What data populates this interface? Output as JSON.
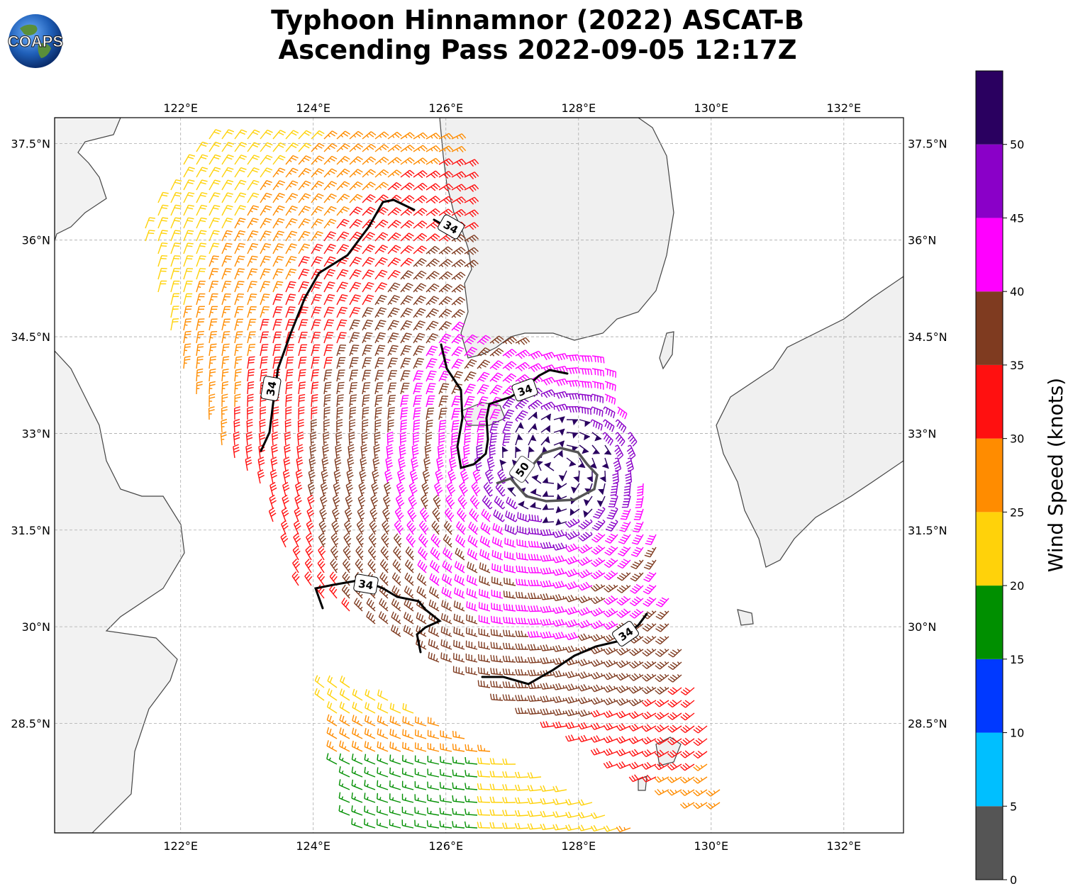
{
  "title": {
    "line1": "Typhoon Hinnamnor (2022) ASCAT-B",
    "line2": "Ascending Pass 2022-09-05 12:17Z"
  },
  "logo": {
    "text": "COAPS",
    "icon": "globe-icon"
  },
  "map": {
    "lon_range": [
      120.1,
      132.9
    ],
    "lat_range": [
      26.8,
      37.9
    ],
    "lon_ticks": [
      {
        "value": 122,
        "label": "122°E"
      },
      {
        "value": 124,
        "label": "124°E"
      },
      {
        "value": 126,
        "label": "126°E"
      },
      {
        "value": 128,
        "label": "128°E"
      },
      {
        "value": 130,
        "label": "130°E"
      },
      {
        "value": 132,
        "label": "132°E"
      }
    ],
    "lat_ticks": [
      {
        "value": 37.5,
        "label": "37.5°N"
      },
      {
        "value": 36,
        "label": "36°N"
      },
      {
        "value": 34.5,
        "label": "34.5°N"
      },
      {
        "value": 33,
        "label": "33°N"
      },
      {
        "value": 31.5,
        "label": "31.5°N"
      },
      {
        "value": 30,
        "label": "30°N"
      },
      {
        "value": 28.5,
        "label": "28.5°N"
      }
    ],
    "gridlines": true,
    "storm_center": {
      "lon": 127.7,
      "lat": 32.5
    }
  },
  "contours": [
    {
      "level": "34",
      "label": "34",
      "color": "#000000"
    },
    {
      "level": "50",
      "label": "50",
      "color": "#555555"
    }
  ],
  "colorbar": {
    "label": "Wind Speed (knots)",
    "bins": [
      {
        "from": 0,
        "to": 5,
        "color": "#555555"
      },
      {
        "from": 5,
        "to": 10,
        "color": "#00bfff"
      },
      {
        "from": 10,
        "to": 15,
        "color": "#0039ff"
      },
      {
        "from": 15,
        "to": 20,
        "color": "#008f00"
      },
      {
        "from": 20,
        "to": 25,
        "color": "#ffd20a"
      },
      {
        "from": 25,
        "to": 30,
        "color": "#ff8c00"
      },
      {
        "from": 30,
        "to": 35,
        "color": "#ff1010"
      },
      {
        "from": 35,
        "to": 40,
        "color": "#7f3b20"
      },
      {
        "from": 40,
        "to": 45,
        "color": "#ff00ff"
      },
      {
        "from": 45,
        "to": 50,
        "color": "#8a00c8"
      },
      {
        "from": 50,
        "to": 55,
        "color": "#2a0060"
      }
    ],
    "ticks": [
      "0",
      "5",
      "10",
      "15",
      "20",
      "25",
      "30",
      "35",
      "40",
      "45",
      "50"
    ]
  }
}
